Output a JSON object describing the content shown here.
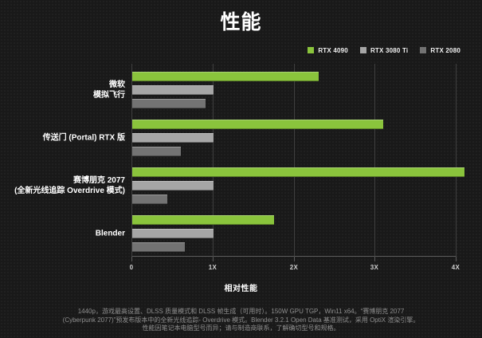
{
  "title": "性能",
  "legend": [
    {
      "label": "RTX 4090",
      "color": "#8ac43c"
    },
    {
      "label": "RTX 3080 Ti",
      "color": "#a6a6a6"
    },
    {
      "label": "RTX 2080",
      "color": "#737373"
    }
  ],
  "chart_data": {
    "type": "bar",
    "orientation": "horizontal",
    "title": "性能",
    "xlabel": "相对性能",
    "categories": [
      [
        "微软",
        "模拟飞行"
      ],
      [
        "传送门 (Portal) RTX 版"
      ],
      [
        "赛博朋克 2077",
        "(全新光线追踪 Overdrive 模式)"
      ],
      [
        "Blender"
      ]
    ],
    "series": [
      {
        "name": "RTX 4090",
        "color": "#8ac43c",
        "values": [
          2.3,
          3.1,
          4.1,
          1.75
        ]
      },
      {
        "name": "RTX 3080 Ti",
        "color": "#a6a6a6",
        "values": [
          1.0,
          1.0,
          1.0,
          1.0
        ]
      },
      {
        "name": "RTX 2080",
        "color": "#737373",
        "values": [
          0.9,
          0.6,
          0.43,
          0.65
        ]
      }
    ],
    "x_ticks": [
      "0",
      "1X",
      "2X",
      "3X",
      "4X"
    ],
    "x_tick_values": [
      0,
      1,
      2,
      3,
      4
    ],
    "xlim": [
      0,
      4.3
    ],
    "grid": true,
    "legend_position": "top-right",
    "baseline_note": "values relative to RTX 3080 Ti = 1X"
  },
  "footnote": {
    "lines": [
      "1440p，游戏最高设置、DLSS 质量模式和 DLSS 帧生成（可用时）。150W GPU TGP，Win11 x64。“赛博朋克 2077",
      "(Cyberpunk 2077)”预发布版本中的全新光线追踪- Overdrive 模式。Blender 3.2.1 Open Data 基准测试，采用 OptiX 渲染引擎。",
      "性能因笔记本电脑型号而异；请与制造商联系，了解确切型号和规格。"
    ]
  }
}
